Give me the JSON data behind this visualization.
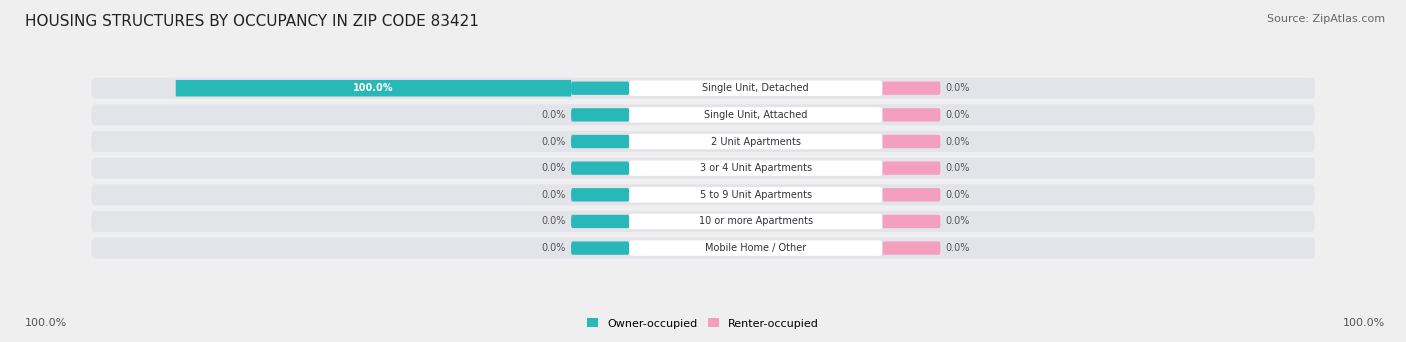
{
  "title": "HOUSING STRUCTURES BY OCCUPANCY IN ZIP CODE 83421",
  "source_text": "Source: ZipAtlas.com",
  "categories": [
    "Single Unit, Detached",
    "Single Unit, Attached",
    "2 Unit Apartments",
    "3 or 4 Unit Apartments",
    "5 to 9 Unit Apartments",
    "10 or more Apartments",
    "Mobile Home / Other"
  ],
  "owner_values": [
    100.0,
    0.0,
    0.0,
    0.0,
    0.0,
    0.0,
    0.0
  ],
  "renter_values": [
    0.0,
    0.0,
    0.0,
    0.0,
    0.0,
    0.0,
    0.0
  ],
  "owner_color": "#29B8B8",
  "renter_color": "#F4A0BC",
  "bg_color": "#EFEFEF",
  "bar_bg_color": "#E3E3EA",
  "title_fontsize": 11,
  "source_fontsize": 8,
  "hundred_label": "100.0%",
  "zero_label": "0.0%"
}
